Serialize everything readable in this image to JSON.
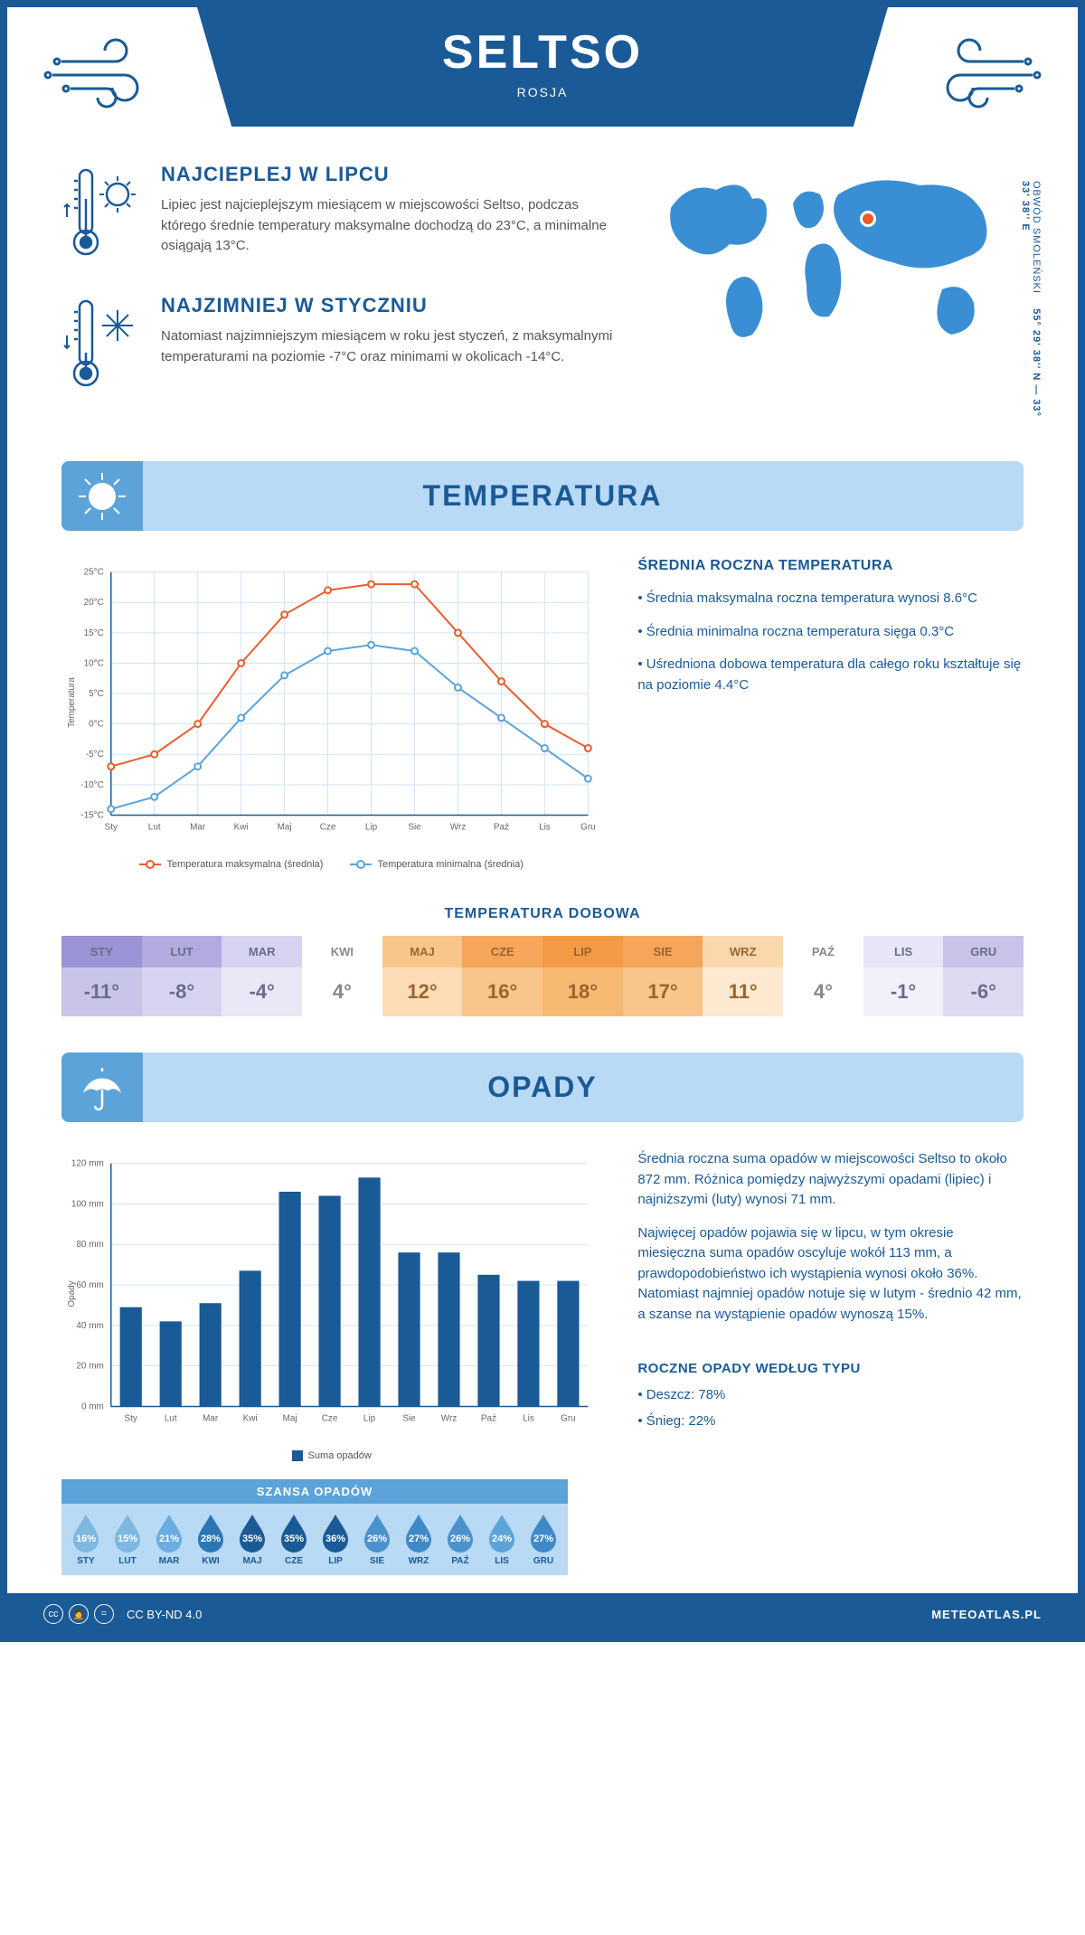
{
  "header": {
    "city": "SELTSO",
    "country": "ROSJA"
  },
  "coords": {
    "text": "55° 29' 38'' N — 33° 33' 38'' E",
    "region": "OBWÓD SMOLEŃSKI"
  },
  "info": {
    "warm": {
      "title": "NAJCIEPLEJ W LIPCU",
      "text": "Lipiec jest najcieplejszym miesiącem w miejscowości Seltso, podczas którego średnie temperatury maksymalne dochodzą do 23°C, a minimalne osiągają 13°C."
    },
    "cold": {
      "title": "NAJZIMNIEJ W STYCZNIU",
      "text": "Natomiast najzimniejszym miesiącem w roku jest styczeń, z maksymalnymi temperaturami na poziomie -7°C oraz minimami w okolicach -14°C."
    }
  },
  "sections": {
    "temperature": "TEMPERATURA",
    "precipitation": "OPADY"
  },
  "tempChart": {
    "type": "line",
    "months": [
      "Sty",
      "Lut",
      "Mar",
      "Kwi",
      "Maj",
      "Cze",
      "Lip",
      "Sie",
      "Wrz",
      "Paź",
      "Lis",
      "Gru"
    ],
    "max": [
      -7,
      -5,
      0,
      10,
      18,
      22,
      23,
      23,
      15,
      7,
      0,
      -4
    ],
    "min": [
      -14,
      -12,
      -7,
      1,
      8,
      12,
      13,
      12,
      6,
      1,
      -4,
      -9
    ],
    "ylim": [
      -15,
      25
    ],
    "ytick_step": 5,
    "y_label": "Temperatura",
    "max_color": "#e85d2e",
    "min_color": "#5ba3d9",
    "grid_color": "#d0e5f5",
    "axis_color": "#1a5a96",
    "legend_max": "Temperatura maksymalna (średnia)",
    "legend_min": "Temperatura minimalna (średnia)",
    "axis_fontsize": 10
  },
  "annualTemp": {
    "title": "ŚREDNIA ROCZNA TEMPERATURA",
    "b1": "• Średnia maksymalna roczna temperatura wynosi 8.6°C",
    "b2": "• Średnia minimalna roczna temperatura sięga 0.3°C",
    "b3": "• Uśredniona dobowa temperatura dla całego roku kształtuje się na poziomie 4.4°C"
  },
  "dailyTemp": {
    "title": "TEMPERATURA DOBOWA",
    "months": [
      "STY",
      "LUT",
      "MAR",
      "KWI",
      "MAJ",
      "CZE",
      "LIP",
      "SIE",
      "WRZ",
      "PAŹ",
      "LIS",
      "GRU"
    ],
    "values": [
      "-11°",
      "-8°",
      "-4°",
      "4°",
      "12°",
      "16°",
      "18°",
      "17°",
      "11°",
      "4°",
      "-1°",
      "-6°"
    ],
    "header_colors": [
      "#9a93d4",
      "#b1abe0",
      "#d6d3f0",
      "#ffffff",
      "#f8c58a",
      "#f5a65a",
      "#f39a46",
      "#f5a65a",
      "#fad7ad",
      "#ffffff",
      "#e8e6f6",
      "#c8c3e8"
    ],
    "value_colors": [
      "#c8c3e8",
      "#d6d3f0",
      "#eae8f7",
      "#ffffff",
      "#fbdcb5",
      "#f8c58a",
      "#f7b872",
      "#f8c58a",
      "#fce9d0",
      "#ffffff",
      "#f2f1fa",
      "#ddd9f1"
    ],
    "text_cold": "#6b6b8a",
    "text_warm": "#9a6530",
    "text_neutral": "#888"
  },
  "precipChart": {
    "type": "bar",
    "months": [
      "Sty",
      "Lut",
      "Mar",
      "Kwi",
      "Maj",
      "Cze",
      "Lip",
      "Sie",
      "Wrz",
      "Paź",
      "Lis",
      "Gru"
    ],
    "values": [
      49,
      42,
      51,
      67,
      106,
      104,
      113,
      76,
      76,
      65,
      62,
      62
    ],
    "ylim": [
      0,
      120
    ],
    "ytick_step": 20,
    "y_label": "Opady",
    "y_unit": "mm",
    "bar_color": "#1a5a96",
    "grid_color": "#d0e5f5",
    "legend": "Suma opadów",
    "bar_width": 0.55
  },
  "precipText": {
    "p1": "Średnia roczna suma opadów w miejscowości Seltso to około 872 mm. Różnica pomiędzy najwyższymi opadami (lipiec) i najniższymi (luty) wynosi 71 mm.",
    "p2": "Najwięcej opadów pojawia się w lipcu, w tym okresie miesięczna suma opadów oscyluje wokół 113 mm, a prawdopodobieństwo ich wystąpienia wynosi około 36%. Natomiast najmniej opadów notuje się w lutym - średnio 42 mm, a szanse na wystąpienie opadów wynoszą 15%."
  },
  "chance": {
    "title": "SZANSA OPADÓW",
    "months": [
      "STY",
      "LUT",
      "MAR",
      "KWI",
      "MAJ",
      "CZE",
      "LIP",
      "SIE",
      "WRZ",
      "PAŹ",
      "LIS",
      "GRU"
    ],
    "values": [
      "16%",
      "15%",
      "21%",
      "28%",
      "35%",
      "35%",
      "36%",
      "26%",
      "27%",
      "26%",
      "24%",
      "27%"
    ],
    "drop_colors": [
      "#7db8e0",
      "#7db8e0",
      "#6aade0",
      "#2a76b8",
      "#1a5a96",
      "#1a5a96",
      "#1a5a96",
      "#4a92ce",
      "#3f89c8",
      "#4a92ce",
      "#5ba3d9",
      "#3f89c8"
    ]
  },
  "precipType": {
    "title": "ROCZNE OPADY WEDŁUG TYPU",
    "rain": "• Deszcz: 78%",
    "snow": "• Śnieg: 22%"
  },
  "footer": {
    "license": "CC BY-ND 4.0",
    "site": "METEOATLAS.PL"
  },
  "colors": {
    "primary": "#1a5a96",
    "light_blue": "#b8daf5",
    "mid_blue": "#5ba3d9",
    "map_blue": "#3a8fd4",
    "marker": "#e85d2e"
  }
}
